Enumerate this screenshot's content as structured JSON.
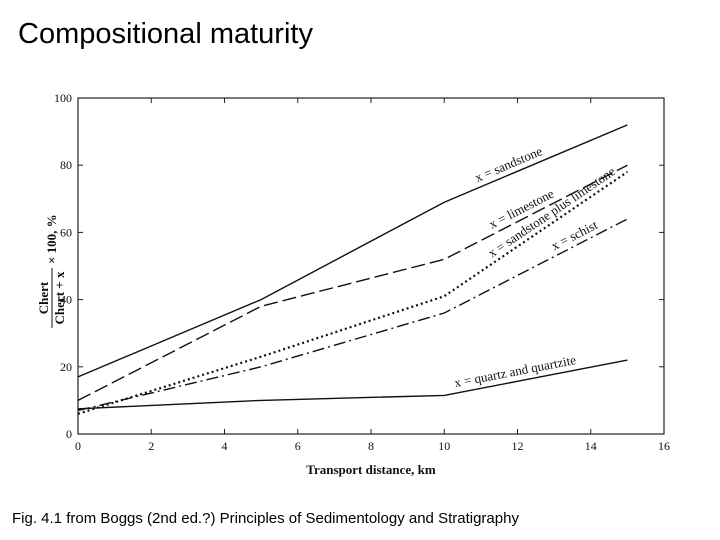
{
  "slide": {
    "title": "Compositional maturity",
    "caption": "Fig. 4.1 from Boggs (2nd ed.?) Principles of Sedimentology and Stratigraphy"
  },
  "chart_data": {
    "type": "line",
    "title": "",
    "xlabel": "Transport distance, km",
    "ylabel": "Chert / (Chert + x) × 100, %",
    "ylabel_parts": {
      "num": "Chert",
      "den": "Chert + x",
      "tail": "× 100, %"
    },
    "xlim": [
      0,
      16
    ],
    "ylim": [
      0,
      100
    ],
    "xticks": [
      0,
      2,
      4,
      6,
      8,
      10,
      12,
      14,
      16
    ],
    "yticks": [
      0,
      20,
      40,
      60,
      80,
      100
    ],
    "grid": false,
    "legend": "inline labels",
    "series": [
      {
        "name": "x = sandstone",
        "style": "solid",
        "color": "#111111",
        "points": [
          [
            0,
            17
          ],
          [
            5,
            40
          ],
          [
            10,
            69
          ],
          [
            15,
            92
          ]
        ]
      },
      {
        "name": "x = limestone",
        "style": "dashed",
        "color": "#111111",
        "points": [
          [
            0,
            10
          ],
          [
            5,
            38
          ],
          [
            10,
            52
          ],
          [
            15,
            80
          ]
        ]
      },
      {
        "name": "x = sandstone plus limestone",
        "style": "dotted",
        "color": "#111111",
        "points": [
          [
            0,
            6
          ],
          [
            5,
            23
          ],
          [
            10,
            41
          ],
          [
            15,
            78
          ]
        ]
      },
      {
        "name": "x = schist",
        "style": "dashdot",
        "color": "#111111",
        "points": [
          [
            0,
            7
          ],
          [
            5,
            20
          ],
          [
            10,
            36
          ],
          [
            15,
            64
          ]
        ]
      },
      {
        "name": "x = quartz and quartzite",
        "style": "solid",
        "color": "#111111",
        "points": [
          [
            0,
            7.5
          ],
          [
            5,
            10
          ],
          [
            10,
            11.5
          ],
          [
            15,
            22
          ]
        ]
      }
    ]
  }
}
